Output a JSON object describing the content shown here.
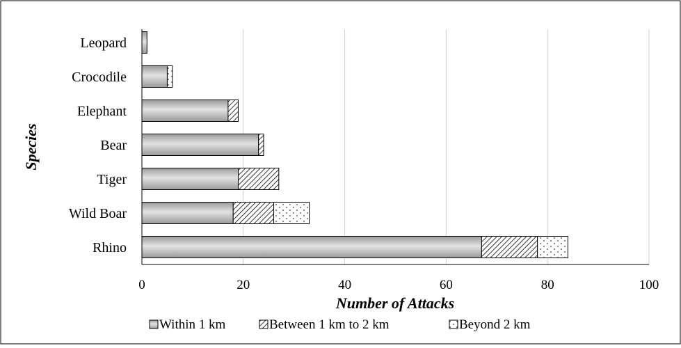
{
  "chart_data": {
    "type": "bar",
    "orientation": "horizontal",
    "stacked": true,
    "title": "",
    "xlabel": "Number of Attacks",
    "ylabel": "Species",
    "xlim": [
      0,
      100
    ],
    "xticks": [
      0,
      20,
      40,
      60,
      80,
      100
    ],
    "grid": "vertical",
    "legend_position": "bottom",
    "categories": [
      "Rhino",
      "Wild Boar",
      "Tiger",
      "Bear",
      "Elephant",
      "Crocodile",
      "Leopard"
    ],
    "series": [
      {
        "name": "Within 1 km",
        "values": [
          67,
          18,
          19,
          23,
          17,
          5,
          1
        ],
        "pattern": "gradient-gray"
      },
      {
        "name": "Between 1 km to 2 km",
        "values": [
          11,
          8,
          8,
          1,
          2,
          0,
          0
        ],
        "pattern": "diagonal-hatch"
      },
      {
        "name": "Beyond 2 km",
        "values": [
          6,
          7,
          0,
          0,
          0,
          1,
          0
        ],
        "pattern": "dots"
      }
    ]
  }
}
